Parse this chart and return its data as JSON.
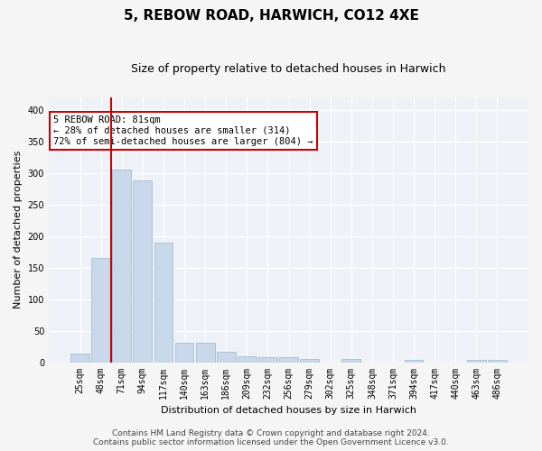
{
  "title": "5, REBOW ROAD, HARWICH, CO12 4XE",
  "subtitle": "Size of property relative to detached houses in Harwich",
  "xlabel": "Distribution of detached houses by size in Harwich",
  "ylabel": "Number of detached properties",
  "categories": [
    "25sqm",
    "48sqm",
    "71sqm",
    "94sqm",
    "117sqm",
    "140sqm",
    "163sqm",
    "186sqm",
    "209sqm",
    "232sqm",
    "256sqm",
    "279sqm",
    "302sqm",
    "325sqm",
    "348sqm",
    "371sqm",
    "394sqm",
    "417sqm",
    "440sqm",
    "463sqm",
    "486sqm"
  ],
  "values": [
    13,
    165,
    305,
    288,
    190,
    31,
    31,
    17,
    10,
    8,
    8,
    5,
    0,
    5,
    0,
    0,
    3,
    0,
    0,
    3,
    3
  ],
  "bar_color": "#c8d8ea",
  "bar_edge_color": "#9ab5cc",
  "vline_color": "#cc0000",
  "vline_index": 2,
  "annotation_text": "5 REBOW ROAD: 81sqm\n← 28% of detached houses are smaller (314)\n72% of semi-detached houses are larger (804) →",
  "annotation_box_facecolor": "#ffffff",
  "annotation_box_edgecolor": "#cc0000",
  "footer_line1": "Contains HM Land Registry data © Crown copyright and database right 2024.",
  "footer_line2": "Contains public sector information licensed under the Open Government Licence v3.0.",
  "ylim": [
    0,
    420
  ],
  "yticks": [
    0,
    50,
    100,
    150,
    200,
    250,
    300,
    350,
    400
  ],
  "bg_color": "#eef2f8",
  "grid_color": "#ffffff",
  "fig_bg_color": "#f5f5f5",
  "title_fontsize": 11,
  "subtitle_fontsize": 9,
  "axis_label_fontsize": 8,
  "tick_fontsize": 7,
  "footer_fontsize": 6.5,
  "annotation_fontsize": 7.5
}
